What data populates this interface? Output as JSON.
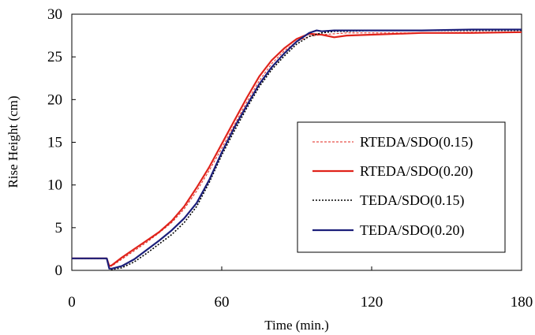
{
  "chart_data": {
    "type": "line",
    "title": "",
    "xlabel": "Time (min.)",
    "ylabel": "Rise Height (cm)",
    "xlim": [
      0,
      180
    ],
    "ylim": [
      0,
      30
    ],
    "x_ticks": [
      0,
      60,
      120,
      180
    ],
    "y_ticks": [
      0,
      5,
      10,
      15,
      20,
      25,
      30
    ],
    "grid": false,
    "legend_position": "right",
    "series": [
      {
        "name": "RTEDA/SDO(0.15)",
        "color": "#e0231b",
        "dash": "dashed-thin",
        "x": [
          0,
          10,
          14,
          15,
          16,
          20,
          25,
          30,
          35,
          40,
          45,
          50,
          55,
          60,
          65,
          70,
          75,
          80,
          85,
          90,
          95,
          100,
          105,
          110,
          120,
          140,
          160,
          180
        ],
        "y": [
          1.4,
          1.4,
          1.4,
          0.5,
          0.5,
          1.3,
          2.3,
          3.3,
          4.4,
          5.6,
          7.2,
          9.3,
          11.7,
          14.3,
          17.0,
          19.7,
          22.2,
          24.2,
          25.7,
          26.8,
          27.4,
          27.6,
          27.7,
          27.8,
          27.8,
          27.8,
          27.9,
          27.9
        ]
      },
      {
        "name": "RTEDA/SDO(0.20)",
        "color": "#e0231b",
        "dash": "solid",
        "x": [
          0,
          10,
          14,
          15,
          16,
          20,
          25,
          30,
          35,
          40,
          45,
          50,
          55,
          60,
          65,
          70,
          75,
          80,
          85,
          90,
          95,
          100,
          105,
          110,
          120,
          140,
          160,
          180
        ],
        "y": [
          1.4,
          1.4,
          1.4,
          0.5,
          0.6,
          1.5,
          2.5,
          3.5,
          4.5,
          5.8,
          7.5,
          9.7,
          12.1,
          14.8,
          17.5,
          20.2,
          22.7,
          24.6,
          26.0,
          27.1,
          27.7,
          27.6,
          27.3,
          27.5,
          27.6,
          27.8,
          27.8,
          27.9
        ]
      },
      {
        "name": "TEDA/SDO(0.15)",
        "color": "#000000",
        "dash": "dotted",
        "x": [
          0,
          10,
          14,
          15,
          16,
          20,
          25,
          30,
          35,
          40,
          45,
          50,
          55,
          60,
          65,
          70,
          75,
          80,
          85,
          90,
          95,
          100,
          105,
          110,
          120,
          140,
          160,
          180
        ],
        "y": [
          1.4,
          1.4,
          1.4,
          0.2,
          0.1,
          0.3,
          1.0,
          2.0,
          3.1,
          4.2,
          5.6,
          7.5,
          10.3,
          13.5,
          16.3,
          19.0,
          21.5,
          23.5,
          25.1,
          26.5,
          27.4,
          27.8,
          28.0,
          28.0,
          28.1,
          28.1,
          28.1,
          28.1
        ]
      },
      {
        "name": "TEDA/SDO(0.20)",
        "color": "#1c1f7a",
        "dash": "solid",
        "x": [
          0,
          10,
          14,
          15,
          16,
          20,
          25,
          30,
          35,
          40,
          45,
          50,
          55,
          60,
          65,
          70,
          75,
          80,
          85,
          90,
          95,
          98,
          100,
          105,
          110,
          120,
          140,
          160,
          180
        ],
        "y": [
          1.4,
          1.4,
          1.4,
          0.2,
          0.2,
          0.5,
          1.3,
          2.4,
          3.5,
          4.7,
          6.1,
          7.9,
          10.6,
          13.8,
          16.7,
          19.3,
          21.8,
          23.8,
          25.4,
          26.8,
          27.8,
          28.1,
          28.0,
          28.1,
          28.1,
          28.1,
          28.1,
          28.2,
          28.2
        ]
      }
    ]
  }
}
